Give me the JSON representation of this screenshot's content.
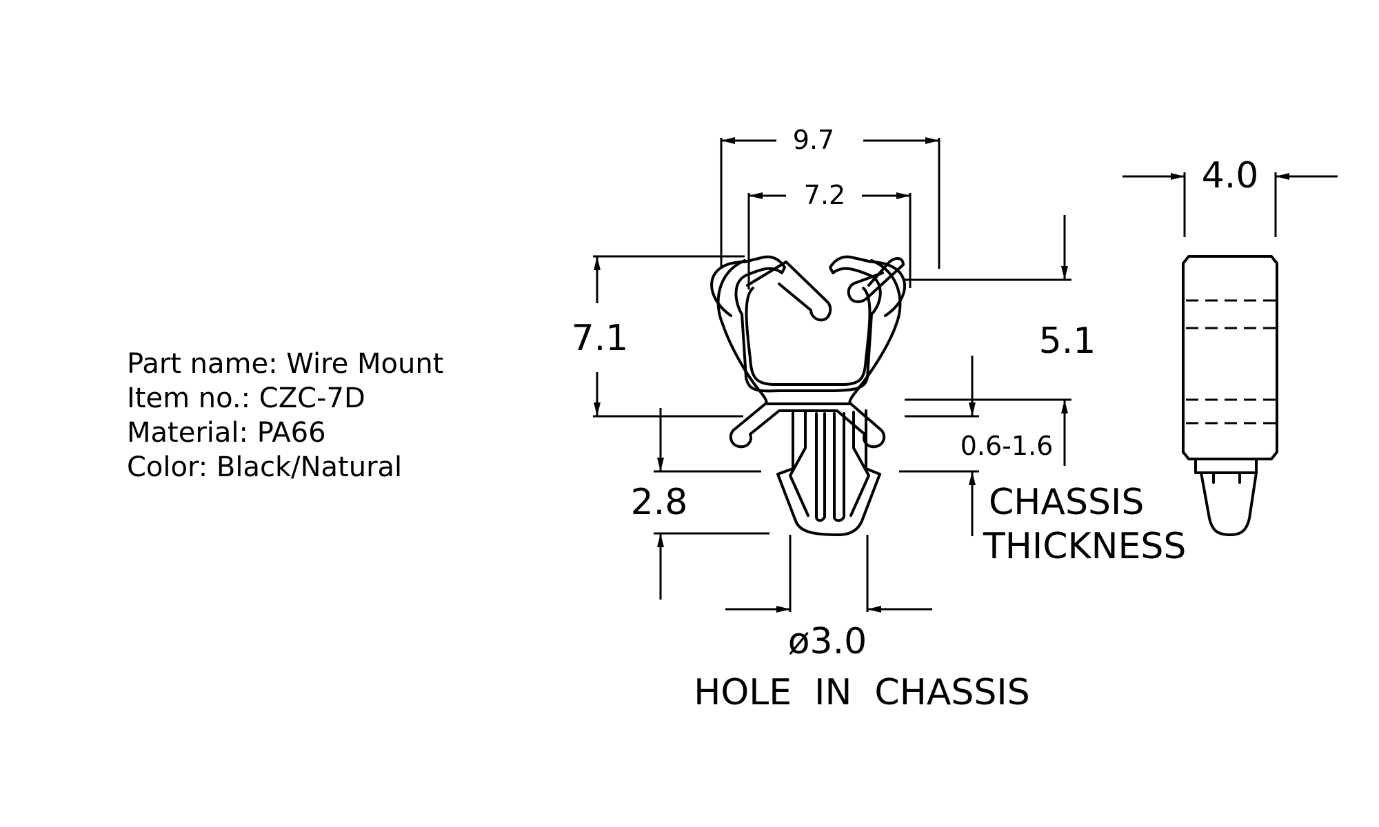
{
  "specs": {
    "part_name": "Part name: Wire Mount",
    "item_no": "Item no.: CZC-7D",
    "material": "Material: PA66",
    "color": "Color: Black/Natural"
  },
  "dimensions": {
    "overall_width": "9.7",
    "inner_width": "7.2",
    "height": "7.1",
    "inner_height": "5.1",
    "base_height": "2.8",
    "chassis_range": "0.6-1.6",
    "side_width": "4.0",
    "hole_diameter": "ø3.0"
  },
  "notes": {
    "chassis_line1": "CHASSIS",
    "chassis_line2": "THICKNESS",
    "hole_line": "HOLE  IN  CHASSIS"
  }
}
